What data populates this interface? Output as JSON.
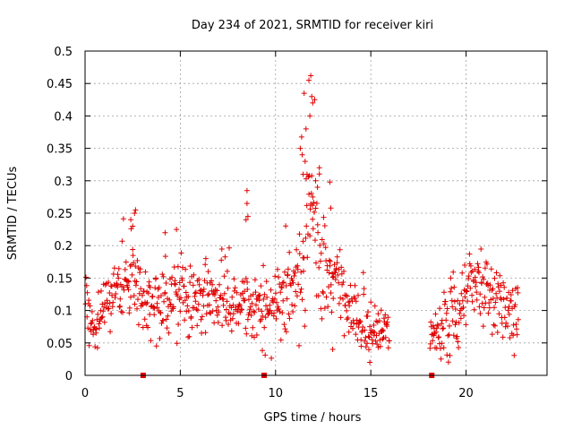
{
  "chart_data": {
    "type": "scatter",
    "title": "Day 234 of 2021, SRMTID for receiver kiri",
    "xlabel": "GPS time / hours",
    "ylabel": "SRMTID / TECUs",
    "xlim": [
      0,
      24.25
    ],
    "ylim": [
      0,
      0.5
    ],
    "x_ticks": [
      0,
      5,
      10,
      15,
      20
    ],
    "x_tick_labels": [
      "0",
      "5",
      "10",
      "15",
      "20"
    ],
    "y_ticks": [
      0,
      0.05,
      0.1,
      0.15,
      0.2,
      0.25,
      0.3,
      0.35,
      0.4,
      0.45,
      0.5
    ],
    "y_tick_labels": [
      "0",
      "0.05",
      "0.1",
      "0.15",
      "0.2",
      "0.25",
      "0.3",
      "0.35",
      "0.4",
      "0.45",
      "0.5"
    ],
    "grid": true,
    "marker": "+",
    "series_color": "#e00000",
    "zero_markers_x": [
      3.05,
      9.4,
      18.2
    ],
    "sampling": {
      "x_start": 0.0,
      "x_end": 22.75,
      "step": 0.025,
      "gap": [
        16.0,
        18.1
      ],
      "seed": 234
    },
    "envelope": {
      "x": [
        0.0,
        0.3,
        0.6,
        1.0,
        1.5,
        2.0,
        2.5,
        3.0,
        3.5,
        4.0,
        4.5,
        5.0,
        5.5,
        6.0,
        6.5,
        7.0,
        7.5,
        8.0,
        8.5,
        9.0,
        9.5,
        10.0,
        10.5,
        11.0,
        11.3,
        11.6,
        11.8,
        12.0,
        12.3,
        12.7,
        13.2,
        13.7,
        14.2,
        14.6,
        15.0,
        15.5,
        16.0,
        18.1,
        18.6,
        19.0,
        19.5,
        20.0,
        20.5,
        21.0,
        21.5,
        22.0,
        22.75
      ],
      "mean": [
        0.12,
        0.08,
        0.075,
        0.1,
        0.13,
        0.145,
        0.15,
        0.115,
        0.11,
        0.115,
        0.12,
        0.13,
        0.12,
        0.12,
        0.12,
        0.12,
        0.11,
        0.1,
        0.1,
        0.1,
        0.105,
        0.11,
        0.12,
        0.14,
        0.17,
        0.22,
        0.24,
        0.22,
        0.18,
        0.16,
        0.14,
        0.12,
        0.1,
        0.08,
        0.07,
        0.07,
        0.07,
        0.07,
        0.07,
        0.085,
        0.1,
        0.12,
        0.14,
        0.13,
        0.11,
        0.1,
        0.105
      ],
      "spread": [
        0.03,
        0.02,
        0.02,
        0.025,
        0.03,
        0.035,
        0.035,
        0.025,
        0.025,
        0.03,
        0.03,
        0.035,
        0.03,
        0.03,
        0.03,
        0.03,
        0.03,
        0.025,
        0.03,
        0.025,
        0.025,
        0.03,
        0.03,
        0.035,
        0.05,
        0.07,
        0.08,
        0.06,
        0.045,
        0.04,
        0.035,
        0.03,
        0.025,
        0.02,
        0.02,
        0.02,
        0.02,
        0.02,
        0.02,
        0.025,
        0.03,
        0.03,
        0.035,
        0.03,
        0.025,
        0.025,
        0.025
      ]
    },
    "extra_points": [
      [
        11.75,
        0.455
      ],
      [
        11.85,
        0.462
      ],
      [
        11.9,
        0.43
      ],
      [
        11.95,
        0.42
      ],
      [
        11.8,
        0.4
      ],
      [
        11.5,
        0.435
      ],
      [
        11.6,
        0.38
      ],
      [
        11.3,
        0.35
      ],
      [
        11.4,
        0.34
      ],
      [
        11.55,
        0.33
      ],
      [
        12.3,
        0.32
      ],
      [
        12.2,
        0.29
      ],
      [
        11.65,
        0.31
      ],
      [
        12.1,
        0.3
      ],
      [
        12.85,
        0.298
      ],
      [
        12.9,
        0.258
      ],
      [
        8.5,
        0.285
      ],
      [
        8.5,
        0.265
      ],
      [
        8.55,
        0.245
      ],
      [
        8.45,
        0.24
      ],
      [
        2.6,
        0.25
      ],
      [
        2.65,
        0.255
      ],
      [
        2.4,
        0.24
      ],
      [
        4.2,
        0.22
      ],
      [
        4.8,
        0.225
      ],
      [
        14.95,
        0.02
      ],
      [
        13.0,
        0.04
      ],
      [
        2.5,
        0.23
      ],
      [
        11.45,
        0.31
      ],
      [
        11.95,
        0.275
      ]
    ]
  }
}
